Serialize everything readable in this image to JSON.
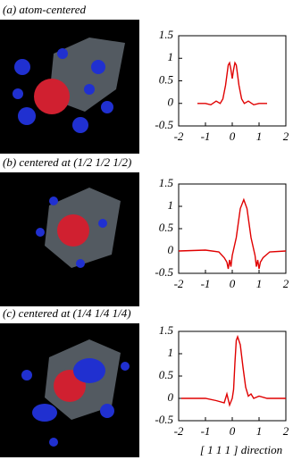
{
  "chart_data": [
    {
      "type": "line",
      "title": "(a) atom-centered",
      "color": "#e00000",
      "x": [
        -1.3,
        -1.0,
        -0.8,
        -0.6,
        -0.45,
        -0.35,
        -0.25,
        -0.15,
        -0.1,
        -0.05,
        0,
        0.05,
        0.1,
        0.15,
        0.25,
        0.35,
        0.45,
        0.6,
        0.8,
        1.0,
        1.3
      ],
      "values": [
        0,
        0,
        -0.03,
        0.05,
        0,
        0.1,
        0.4,
        0.85,
        0.9,
        0.75,
        0.55,
        0.75,
        0.9,
        0.85,
        0.4,
        0.1,
        0,
        0.05,
        -0.03,
        0,
        0
      ],
      "xlim": [
        -2,
        2
      ],
      "xticks": [
        -2,
        -1,
        0,
        1,
        2
      ],
      "ylim": [
        -0.5,
        1.5
      ],
      "yticks": [
        -0.5,
        0,
        0.5,
        1,
        1.5
      ]
    },
    {
      "type": "line",
      "title": "(b) centered at (1/2 1/2 1/2)",
      "color": "#e00000",
      "x": [
        -2,
        -1,
        -0.5,
        -0.3,
        -0.2,
        -0.15,
        -0.1,
        -0.05,
        0,
        0.15,
        0.3,
        0.43,
        0.55,
        0.7,
        0.85,
        0.9,
        0.95,
        1.0,
        1.05,
        1.15,
        1.4,
        2
      ],
      "values": [
        0,
        0.02,
        -0.02,
        -0.15,
        -0.25,
        -0.4,
        -0.2,
        -0.35,
        -0.1,
        0.3,
        0.95,
        1.15,
        0.95,
        0.3,
        -0.1,
        -0.35,
        -0.2,
        -0.4,
        -0.25,
        -0.15,
        -0.02,
        0
      ],
      "xlim": [
        -2,
        2
      ],
      "xticks": [
        -2,
        -1,
        0,
        1,
        2
      ],
      "ylim": [
        -0.5,
        1.5
      ],
      "yticks": [
        -0.5,
        0,
        0.5,
        1,
        1.5
      ]
    },
    {
      "type": "line",
      "title": "(c) centered at (1/4 1/4 1/4)",
      "color": "#e00000",
      "x": [
        -1.9,
        -1,
        -0.6,
        -0.3,
        -0.2,
        -0.1,
        0,
        0.05,
        0.1,
        0.15,
        0.2,
        0.3,
        0.4,
        0.5,
        0.6,
        0.7,
        0.8,
        1.0,
        1.3,
        2
      ],
      "values": [
        0,
        0,
        -0.05,
        -0.1,
        0.1,
        -0.15,
        0,
        0.2,
        0.8,
        1.3,
        1.38,
        1.2,
        0.7,
        0.25,
        0.05,
        0.1,
        0,
        0.05,
        0,
        0
      ],
      "xlim": [
        -2,
        2
      ],
      "xticks": [
        -2,
        -1,
        0,
        1,
        2
      ],
      "ylim": [
        -0.5,
        1.5
      ],
      "yticks": [
        -0.5,
        0,
        0.5,
        1,
        1.5
      ],
      "xlabel": "[ 1 1 1 ] direction"
    }
  ]
}
